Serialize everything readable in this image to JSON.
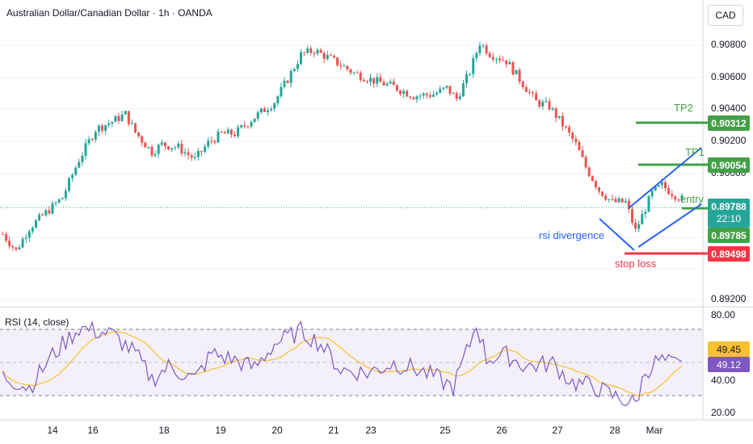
{
  "header": {
    "title": "Australian Dollar/Canadian Dollar · 1h · OANDA",
    "currency": "CAD"
  },
  "colors": {
    "up": "#26a69a",
    "down": "#ef5350",
    "green": "#43a047",
    "red": "#f23645",
    "blue": "#2962ff",
    "rsi": "#7e57c2",
    "rsi_ma": "#fbc02d"
  },
  "price_axis": [
    "0.90800",
    "0.90600",
    "0.90400",
    "0.90200",
    "0.90000",
    "0.89200"
  ],
  "price_tags": {
    "tp2": "0.90312",
    "tp1": "0.90054",
    "current": "0.89788",
    "countdown": "22:10",
    "entry": "0.89785",
    "stop": "0.89498"
  },
  "annotations": {
    "tp2": "TP2",
    "tp1": "TP1",
    "entry": "entry",
    "divergence": "rsi divergence",
    "stop": "stop loss"
  },
  "rsi": {
    "label": "RSI (14, close)",
    "axis": [
      "80.00",
      "40.00",
      "20.00"
    ],
    "value": "49.12",
    "ma_value": "49.45",
    "upper_band": 70,
    "lower_band": 30
  },
  "x_axis": [
    "14",
    "16",
    "18",
    "19",
    "20",
    "21",
    "23",
    "25",
    "26",
    "27",
    "28",
    "Mar"
  ],
  "chart_data": {
    "type": "candlestick",
    "symbol": "AUDCAD",
    "interval": "1h",
    "y_range": [
      0.8915,
      0.91
    ],
    "anchors": [
      [
        0,
        0.8956
      ],
      [
        4,
        0.8945
      ],
      [
        8,
        0.896
      ],
      [
        13,
        0.897
      ],
      [
        18,
        0.898
      ],
      [
        23,
        0.9005
      ],
      [
        28,
        0.9025
      ],
      [
        33,
        0.903
      ],
      [
        37,
        0.9035
      ],
      [
        40,
        0.9023
      ],
      [
        45,
        0.901
      ],
      [
        48,
        0.9015
      ],
      [
        53,
        0.9013
      ],
      [
        58,
        0.9005
      ],
      [
        62,
        0.9016
      ],
      [
        66,
        0.9022
      ],
      [
        70,
        0.9022
      ],
      [
        76,
        0.9033
      ],
      [
        82,
        0.9043
      ],
      [
        86,
        0.9058
      ],
      [
        90,
        0.9074
      ],
      [
        94,
        0.9077
      ],
      [
        100,
        0.907
      ],
      [
        106,
        0.9062
      ],
      [
        112,
        0.9057
      ],
      [
        118,
        0.9053
      ],
      [
        124,
        0.9047
      ],
      [
        130,
        0.9048
      ],
      [
        134,
        0.9052
      ],
      [
        137,
        0.9045
      ],
      [
        141,
        0.9063
      ],
      [
        144,
        0.9082
      ],
      [
        147,
        0.9075
      ],
      [
        152,
        0.907
      ],
      [
        157,
        0.9055
      ],
      [
        161,
        0.9043
      ],
      [
        165,
        0.904
      ],
      [
        169,
        0.9028
      ],
      [
        173,
        0.9015
      ],
      [
        176,
        0.9
      ],
      [
        180,
        0.8985
      ],
      [
        184,
        0.8977
      ],
      [
        188,
        0.8977
      ],
      [
        191,
        0.8958
      ],
      [
        193,
        0.8968
      ],
      [
        196,
        0.8983
      ],
      [
        199,
        0.8988
      ],
      [
        202,
        0.8983
      ],
      [
        205,
        0.8979
      ]
    ],
    "rsi_anchors": [
      [
        0,
        42
      ],
      [
        8,
        35
      ],
      [
        15,
        55
      ],
      [
        23,
        72
      ],
      [
        33,
        68
      ],
      [
        40,
        56
      ],
      [
        45,
        40
      ],
      [
        50,
        48
      ],
      [
        58,
        40
      ],
      [
        63,
        56
      ],
      [
        70,
        52
      ],
      [
        76,
        47
      ],
      [
        82,
        62
      ],
      [
        90,
        70
      ],
      [
        96,
        62
      ],
      [
        102,
        46
      ],
      [
        110,
        44
      ],
      [
        118,
        50
      ],
      [
        124,
        47
      ],
      [
        130,
        42
      ],
      [
        136,
        35
      ],
      [
        141,
        62
      ],
      [
        143,
        75
      ],
      [
        146,
        53
      ],
      [
        152,
        55
      ],
      [
        158,
        48
      ],
      [
        166,
        50
      ],
      [
        172,
        38
      ],
      [
        178,
        36
      ],
      [
        184,
        30
      ],
      [
        188,
        27
      ],
      [
        191,
        25
      ],
      [
        194,
        45
      ],
      [
        198,
        52
      ],
      [
        203,
        49
      ]
    ],
    "levels": {
      "tp2": 0.90312,
      "tp1": 0.90054,
      "entry": 0.89785,
      "stop": 0.89498
    }
  }
}
